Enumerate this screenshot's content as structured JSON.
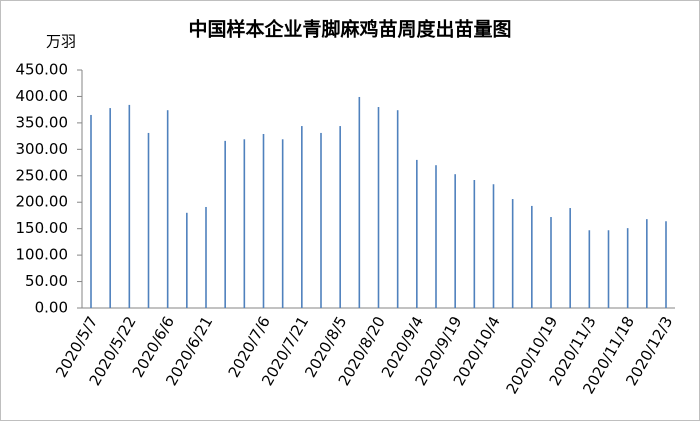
{
  "chart_data": {
    "type": "bar",
    "title": "中国样本企业青脚麻鸡苗周度出苗量图",
    "y_label": "万羽",
    "categories": [
      "2020/5/7",
      null,
      "2020/5/22",
      null,
      "2020/6/6",
      null,
      "2020/6/21",
      null,
      null,
      "2020/7/6",
      null,
      "2020/7/21",
      null,
      "2020/8/5",
      null,
      "2020/8/20",
      null,
      "2020/9/4",
      null,
      "2020/9/19",
      null,
      "2020/10/4",
      null,
      null,
      "2020/10/19",
      null,
      "2020/11/3",
      null,
      "2020/11/18",
      null,
      "2020/12/3"
    ],
    "values": [
      365,
      378,
      384,
      331,
      374,
      180,
      191,
      316,
      319,
      329,
      319,
      344,
      331,
      344,
      399,
      380,
      374,
      280,
      270,
      253,
      242,
      234,
      206,
      193,
      172,
      189,
      147,
      147,
      151,
      168,
      164
    ],
    "color": "#4f81bd",
    "ylim": [
      0,
      450
    ],
    "yticks": [
      {
        "value": 0,
        "label": "0.00"
      },
      {
        "value": 50,
        "label": "50.00"
      },
      {
        "value": 100,
        "label": "100.00"
      },
      {
        "value": 150,
        "label": "150.00"
      },
      {
        "value": 200,
        "label": "200.00"
      },
      {
        "value": 250,
        "label": "250.00"
      },
      {
        "value": 300,
        "label": "300.00"
      },
      {
        "value": 350,
        "label": "350.00"
      },
      {
        "value": 400,
        "label": "400.00"
      },
      {
        "value": 450,
        "label": "450.00"
      }
    ]
  }
}
